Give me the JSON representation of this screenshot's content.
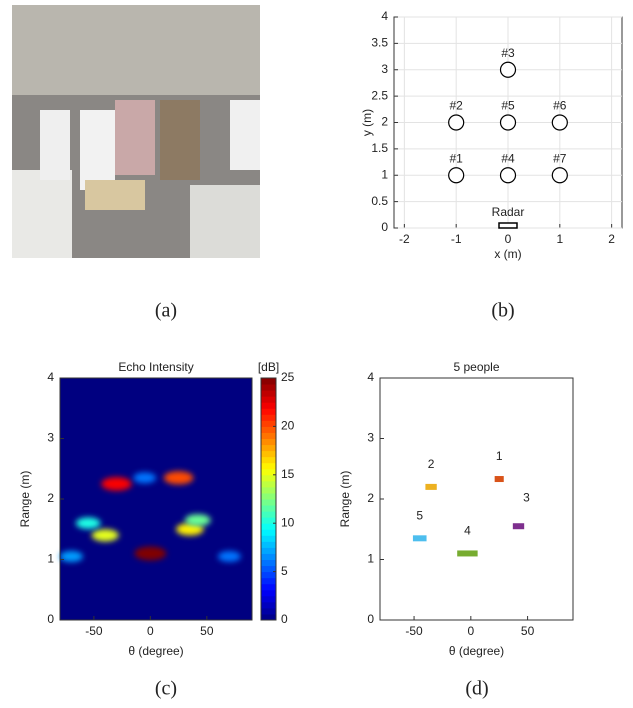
{
  "captions": [
    "(a)",
    "(b)",
    "(c)",
    "(d)"
  ],
  "chart_data": [
    {
      "type": "scatter",
      "xlabel": "x (m)",
      "ylabel": "y (m)",
      "x": [
        -1,
        -1,
        0,
        0,
        0,
        1,
        1
      ],
      "values": [
        1,
        2,
        3,
        1,
        2,
        2,
        1
      ],
      "point_labels": [
        "#1",
        "#2",
        "#3",
        "#4",
        "#5",
        "#6",
        "#7"
      ],
      "annotation": {
        "text": "Radar",
        "x": 0,
        "y": 0
      },
      "xlim": [
        -2.2,
        2.2
      ],
      "xticks": [
        -2,
        -1,
        0,
        1,
        2
      ],
      "ylim": [
        0,
        4
      ],
      "yticks": [
        0,
        0.5,
        1,
        1.5,
        2,
        2.5,
        3,
        3.5,
        4
      ],
      "grid": true
    },
    {
      "type": "heatmap",
      "title": "Echo Intensity",
      "xlabel": "θ (degree)",
      "ylabel": "Range (m)",
      "colorbar_label": "[dB]",
      "clim": [
        0,
        25
      ],
      "colorbar_ticks": [
        0,
        5,
        10,
        15,
        20,
        25
      ],
      "x": [
        -30,
        25,
        -40,
        35,
        -55,
        42,
        0,
        -5,
        -70,
        70
      ],
      "y": [
        2.25,
        2.35,
        1.4,
        1.5,
        1.6,
        1.65,
        1.1,
        2.35,
        1.05,
        1.05
      ],
      "values": [
        22,
        20,
        15,
        16,
        10,
        12,
        25,
        6,
        7,
        6
      ],
      "xlim": [
        -80,
        90
      ],
      "xticks": [
        -50,
        0,
        50
      ],
      "ylim": [
        0,
        4
      ],
      "yticks": [
        0,
        1,
        2,
        3,
        4
      ]
    },
    {
      "type": "segments",
      "title": "5 people",
      "xlabel": "θ (degree)",
      "ylabel": "Range (m)",
      "categories": [
        "1",
        "2",
        "3",
        "4",
        "5"
      ],
      "x": [
        25,
        -35,
        42,
        -3,
        -45
      ],
      "values": [
        2.33,
        2.2,
        1.55,
        1.1,
        1.35
      ],
      "widths": [
        8,
        10,
        10,
        18,
        12
      ],
      "colors": [
        "#d95319",
        "#edb120",
        "#7e2f8e",
        "#77ac30",
        "#4dbeee"
      ],
      "xlim": [
        -80,
        90
      ],
      "xticks": [
        -50,
        0,
        50
      ],
      "ylim": [
        0,
        4
      ],
      "yticks": [
        0,
        1,
        2,
        3,
        4
      ]
    }
  ]
}
